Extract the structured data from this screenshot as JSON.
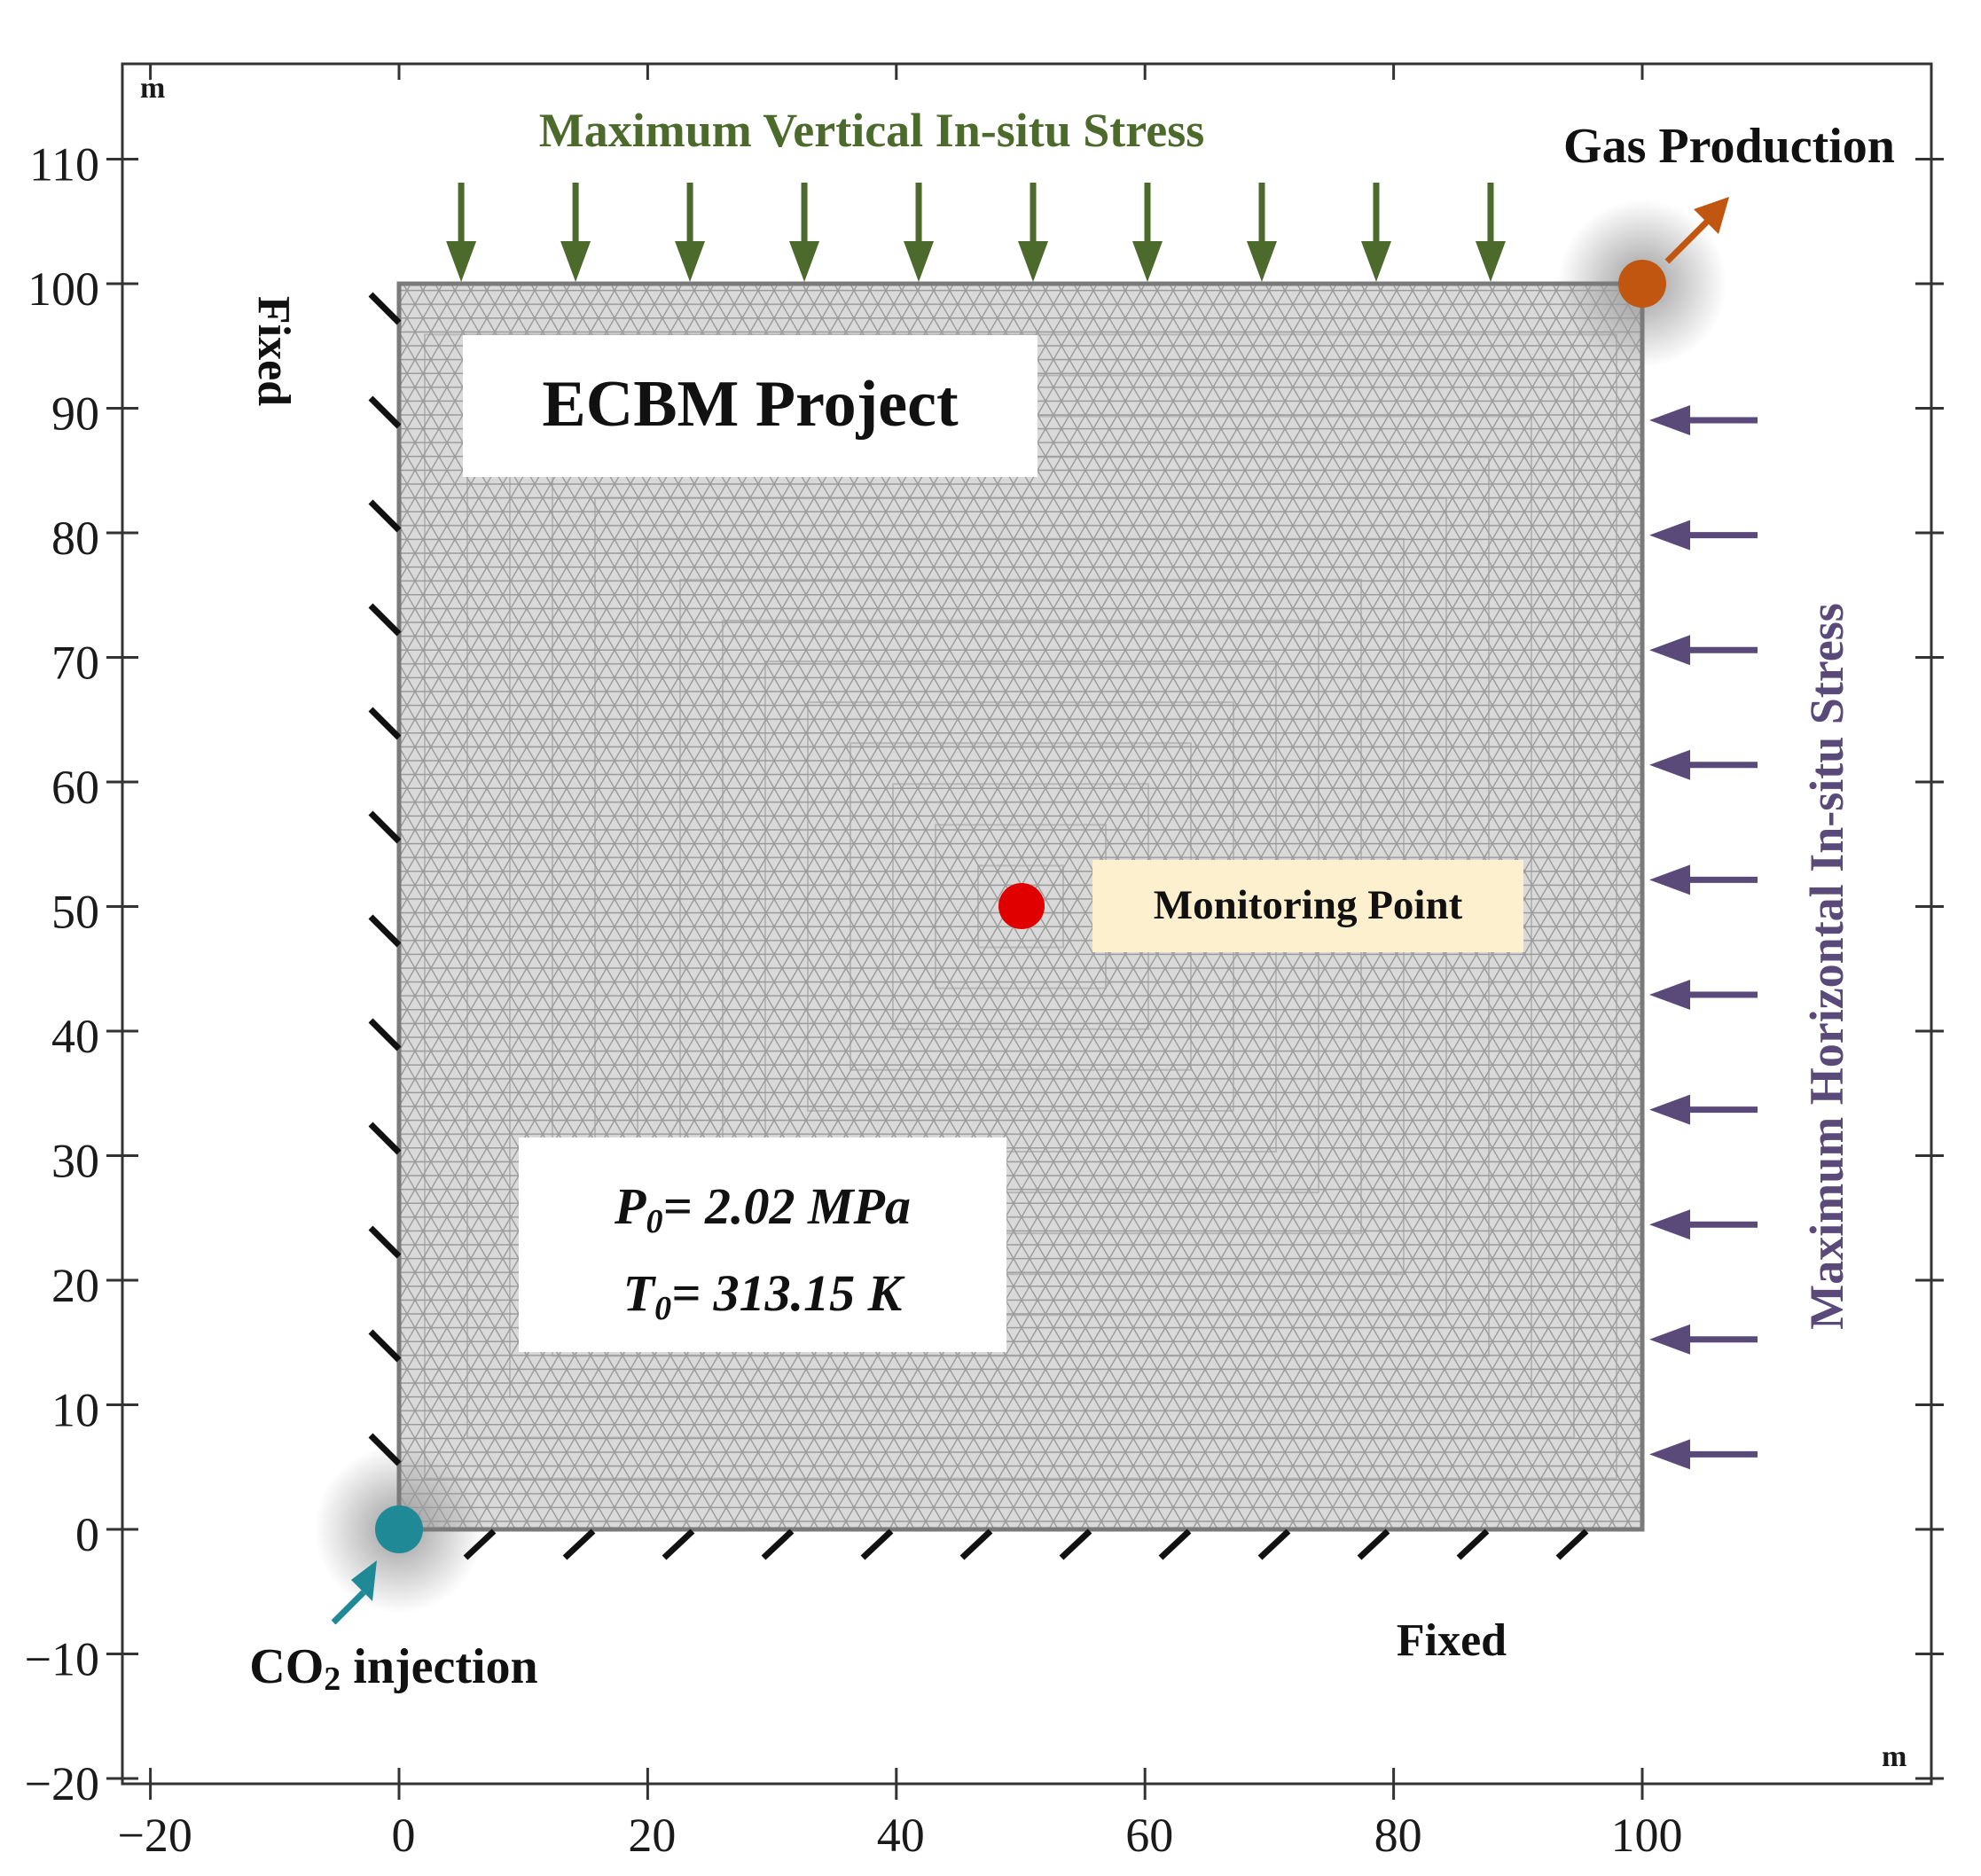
{
  "figure": {
    "project_title": "ECBM Project",
    "unit_top_left": "m",
    "unit_bottom_right": "m",
    "x_ticks": [
      "−20",
      "0",
      "20",
      "40",
      "60",
      "80",
      "100"
    ],
    "y_ticks": [
      "110",
      "100",
      "90",
      "80",
      "70",
      "60",
      "50",
      "40",
      "30",
      "20",
      "10",
      "0",
      "−10",
      "−20"
    ],
    "domain": {
      "x_range": [
        0,
        100
      ],
      "y_range": [
        0,
        100
      ],
      "units": "m"
    },
    "initial_conditions": {
      "p0_symbol": "P",
      "p0_subscript": "0",
      "p0_value": "= 2.02 MPa",
      "t0_symbol": "T",
      "t0_subscript": "0",
      "t0_value": "= 313.15 K"
    },
    "labels": {
      "vertical_stress": "Maximum Vertical In-situ Stress",
      "horizontal_stress": "Maximum Horizontal In-situ Stress",
      "gas_production": "Gas Production",
      "co2_injection_prefix": "CO",
      "co2_injection_subscript": "2",
      "co2_injection_suffix": " injection",
      "monitoring_point": "Monitoring Point",
      "fixed_left": "Fixed",
      "fixed_bottom": "Fixed"
    },
    "points": {
      "monitoring_point": {
        "x": 50,
        "y": 50
      },
      "gas_production_well": {
        "x": 100,
        "y": 100
      },
      "co2_injection_well": {
        "x": 0,
        "y": 0
      }
    },
    "colors": {
      "vertical_stress": "#4b6a2b",
      "horizontal_stress": "#5a4a7a",
      "gas_production": "#c0560f",
      "co2_injection": "#1f8a96",
      "monitoring_point": "#e00000",
      "monitoring_box": "#fdf0cf",
      "mesh_fill": "#d9d9d9",
      "mesh_line": "#9a9a9a"
    }
  }
}
